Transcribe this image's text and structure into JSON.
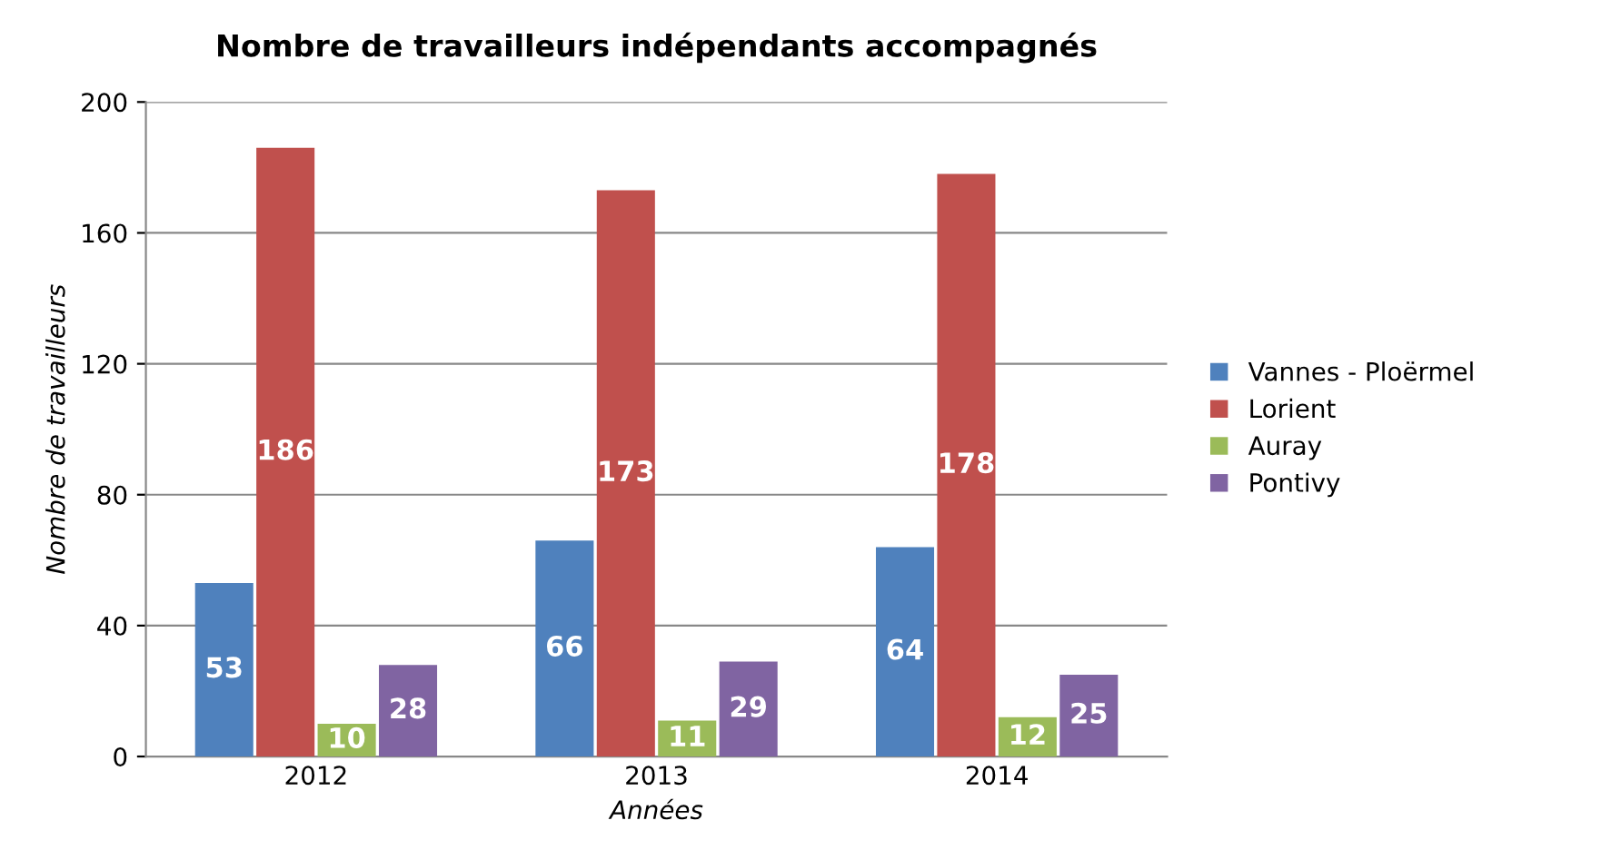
{
  "chart_data": {
    "type": "bar",
    "title": "Nombre de travailleurs indépendants accompagnés",
    "xlabel": "Années",
    "ylabel": "Nombre de travailleurs",
    "categories": [
      "2012",
      "2013",
      "2014"
    ],
    "series": [
      {
        "name": "Vannes - Ploërmel",
        "color": "#4f81bd",
        "values": [
          53,
          66,
          64
        ]
      },
      {
        "name": "Lorient",
        "color": "#c0504d",
        "values": [
          186,
          173,
          178
        ]
      },
      {
        "name": "Auray",
        "color": "#9bbb59",
        "values": [
          10,
          11,
          12
        ]
      },
      {
        "name": "Pontivy",
        "color": "#8064a2",
        "values": [
          28,
          29,
          25
        ]
      }
    ],
    "ylim": [
      0,
      200
    ],
    "yticks": [
      0,
      40,
      80,
      120,
      160,
      200
    ],
    "grid": "y",
    "legend": "right",
    "data_labels": true
  }
}
